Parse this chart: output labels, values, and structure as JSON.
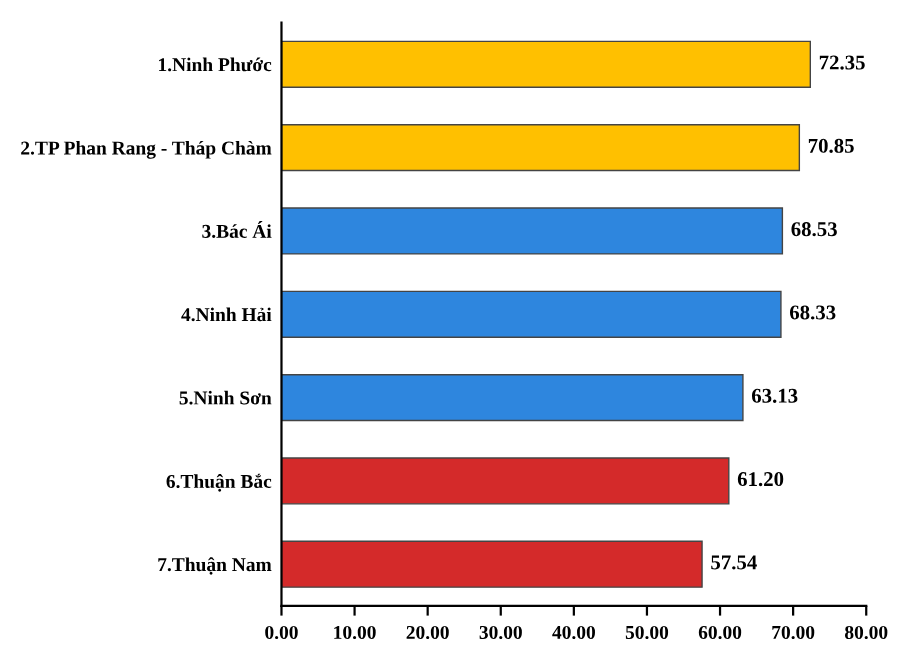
{
  "chart_data": {
    "type": "bar",
    "orientation": "horizontal",
    "categories": [
      "1.Ninh Phước",
      "2.TP Phan Rang - Tháp Chàm",
      "3.Bác Ái",
      "4.Ninh Hải",
      "5.Ninh Sơn",
      "6.Thuận Bắc",
      "7.Thuận Nam"
    ],
    "values": [
      72.35,
      70.85,
      68.53,
      68.33,
      63.13,
      61.2,
      57.54
    ],
    "value_labels": [
      "72.35",
      "70.85",
      "68.53",
      "68.33",
      "63.13",
      "61.20",
      "57.54"
    ],
    "colors": [
      "#ffc000",
      "#ffc000",
      "#2e86de",
      "#2e86de",
      "#2e86de",
      "#d42a2a",
      "#d42a2a"
    ],
    "xlim": [
      0,
      80
    ],
    "xticks": [
      {
        "value": 0,
        "label": "0.00"
      },
      {
        "value": 10,
        "label": "10.00"
      },
      {
        "value": 20,
        "label": "20.00"
      },
      {
        "value": 30,
        "label": "30.00"
      },
      {
        "value": 40,
        "label": "40.00"
      },
      {
        "value": 50,
        "label": "50.00"
      },
      {
        "value": 60,
        "label": "60.00"
      },
      {
        "value": 70,
        "label": "70.00"
      },
      {
        "value": 80,
        "label": "80.00"
      }
    ],
    "grid": false,
    "legend": false
  }
}
